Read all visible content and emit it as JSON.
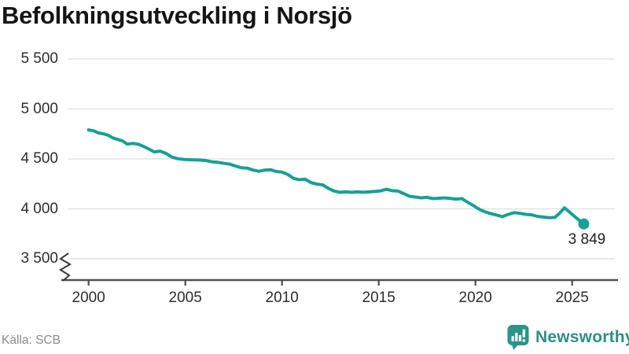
{
  "title": "Befolkningsutveckling i Norsjö",
  "source": "Källa: SCB",
  "logo": {
    "name": "Newsworthy",
    "icon": "bar-chart-speech-bubble-icon",
    "color": "#2b9389",
    "text_color": "#2e8e85"
  },
  "colors": {
    "line": "#16a096",
    "grid": "#e3e3e3",
    "axis": "#4f4f4f",
    "tick_text": "#2d2d2d",
    "title_text": "#151515",
    "muted_text": "#8a8a8a",
    "end_dot": "#16a096"
  },
  "chart_data": {
    "type": "line",
    "title": "Befolkningsutveckling i Norsjö",
    "xlabel": "",
    "ylabel": "",
    "grid": "horizontal",
    "legend": "none",
    "y_axis_break": true,
    "ylim": [
      3500,
      5500
    ],
    "xlim": [
      2000,
      2025.6
    ],
    "y_ticks": [
      5500,
      5000,
      4500,
      4000,
      3500
    ],
    "y_tick_labels": [
      "5 500",
      "5 000",
      "4 500",
      "4 000",
      "3 500"
    ],
    "x_ticks": [
      2000,
      2005,
      2010,
      2015,
      2020,
      2025
    ],
    "x_tick_labels": [
      "2000",
      "2005",
      "2010",
      "2015",
      "2020",
      "2025"
    ],
    "end_label": "3 849",
    "end_value": 3849,
    "series": [
      {
        "x": [
          2000.0,
          2000.25,
          2000.5,
          2000.75,
          2001.0,
          2001.25,
          2001.5,
          2001.75,
          2002.0,
          2002.3,
          2002.6,
          2002.9,
          2003.1,
          2003.4,
          2003.7,
          2004.0,
          2004.3,
          2004.6,
          2004.9,
          2005.2,
          2005.5,
          2005.8,
          2006.1,
          2006.4,
          2006.7,
          2007.0,
          2007.3,
          2007.6,
          2007.9,
          2008.2,
          2008.5,
          2008.8,
          2009.1,
          2009.4,
          2009.7,
          2010.0,
          2010.3,
          2010.6,
          2010.9,
          2011.2,
          2011.5,
          2011.8,
          2012.1,
          2012.4,
          2012.7,
          2013.0,
          2013.3,
          2013.6,
          2013.9,
          2014.2,
          2014.5,
          2014.8,
          2015.1,
          2015.4,
          2015.7,
          2016.0,
          2016.3,
          2016.6,
          2016.9,
          2017.2,
          2017.5,
          2017.8,
          2018.1,
          2018.4,
          2018.7,
          2019.0,
          2019.3,
          2019.6,
          2019.9,
          2020.2,
          2020.5,
          2020.8,
          2021.1,
          2021.4,
          2021.7,
          2022.0,
          2022.3,
          2022.6,
          2022.9,
          2023.2,
          2023.5,
          2023.8,
          2024.1,
          2024.35,
          2024.6,
          2025.0,
          2025.3,
          2025.6
        ],
        "y": [
          4790,
          4782,
          4760,
          4752,
          4738,
          4710,
          4695,
          4680,
          4648,
          4655,
          4645,
          4620,
          4600,
          4570,
          4578,
          4555,
          4518,
          4502,
          4495,
          4492,
          4490,
          4488,
          4482,
          4470,
          4465,
          4455,
          4448,
          4428,
          4412,
          4408,
          4388,
          4376,
          4388,
          4392,
          4374,
          4368,
          4344,
          4305,
          4292,
          4297,
          4262,
          4248,
          4240,
          4205,
          4178,
          4165,
          4170,
          4165,
          4170,
          4166,
          4170,
          4174,
          4180,
          4196,
          4182,
          4178,
          4152,
          4125,
          4118,
          4110,
          4116,
          4102,
          4106,
          4110,
          4104,
          4098,
          4102,
          4065,
          4032,
          3995,
          3970,
          3952,
          3938,
          3922,
          3945,
          3962,
          3955,
          3945,
          3940,
          3925,
          3918,
          3912,
          3914,
          3955,
          4010,
          3945,
          3895,
          3849
        ]
      }
    ]
  }
}
